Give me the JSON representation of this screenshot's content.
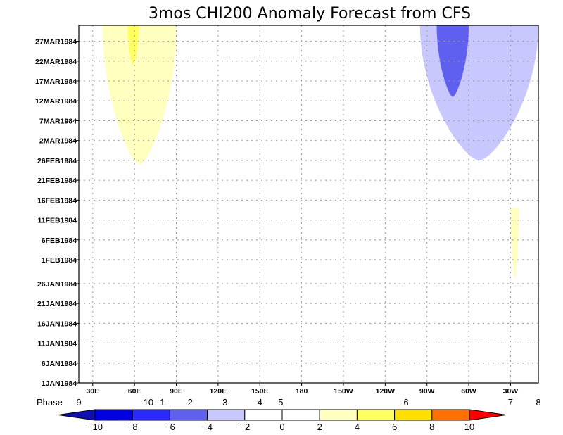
{
  "chart_data": {
    "type": "heatmap",
    "title": "3mos CHI200 Anomaly Forecast from CFS",
    "x_tick_labels": [
      "30E",
      "60E",
      "90E",
      "120E",
      "150E",
      "180",
      "150W",
      "120W",
      "90W",
      "60W",
      "30W"
    ],
    "x_tick_lons": [
      30,
      60,
      90,
      120,
      150,
      180,
      210,
      240,
      270,
      300,
      330
    ],
    "xlim": [
      20,
      350
    ],
    "y_tick_labels": [
      "1JAN1984",
      "6JAN1984",
      "11JAN1984",
      "16JAN1984",
      "21JAN1984",
      "26JAN1984",
      "1FEB1984",
      "6FEB1984",
      "11FEB1984",
      "16FEB1984",
      "21FEB1984",
      "26FEB1984",
      "2MAR1984",
      "7MAR1984",
      "12MAR1984",
      "17MAR1984",
      "22MAR1984",
      "27MAR1984"
    ],
    "y_tick_days": [
      0,
      5,
      10,
      15,
      20,
      25,
      31,
      36,
      41,
      46,
      51,
      56,
      61,
      66,
      71,
      76,
      81,
      86
    ],
    "ylim": [
      0,
      90
    ],
    "grid": true,
    "phase_label": "Phase",
    "phases": [
      {
        "label": "9",
        "lon": 20
      },
      {
        "label": "10",
        "lon": 70
      },
      {
        "label": "1",
        "lon": 80
      },
      {
        "label": "2",
        "lon": 100
      },
      {
        "label": "3",
        "lon": 125
      },
      {
        "label": "4",
        "lon": 150
      },
      {
        "label": "5",
        "lon": 165
      },
      {
        "label": "6",
        "lon": 255
      },
      {
        "label": "7",
        "lon": 330
      },
      {
        "label": "8",
        "lon": 350
      }
    ],
    "colorbar": {
      "levels": [
        "-10",
        "-8",
        "-6",
        "-4",
        "-2",
        "0",
        "2",
        "4",
        "6",
        "8",
        "10"
      ],
      "colors": [
        "#1010b0",
        "#0000e0",
        "#2a2aff",
        "#6060f0",
        "#c8c8ff",
        "#ffffff",
        "#ffffff",
        "#ffffc0",
        "#ffff60",
        "#ffe000",
        "#ff7000",
        "#ff0000"
      ]
    },
    "regions": [
      {
        "value": "2 to 4",
        "color": "#ffffc0",
        "lon": [
          37,
          90
        ],
        "days": [
          55,
          90
        ]
      },
      {
        "value": "4 to 6",
        "color": "#ffff60",
        "lon": [
          55,
          63
        ],
        "days": [
          80,
          90
        ]
      },
      {
        "value": "-4 to -2",
        "color": "#c8c8ff",
        "lon": [
          265,
          350
        ],
        "days": [
          56,
          90
        ]
      },
      {
        "value": "-6 to -4",
        "color": "#6060f0",
        "lon": [
          277,
          300
        ],
        "days": [
          72,
          90
        ]
      },
      {
        "value": "2 to 4",
        "color": "#ffffc0",
        "lon": [
          330,
          336
        ],
        "days": [
          26,
          44
        ]
      }
    ]
  }
}
